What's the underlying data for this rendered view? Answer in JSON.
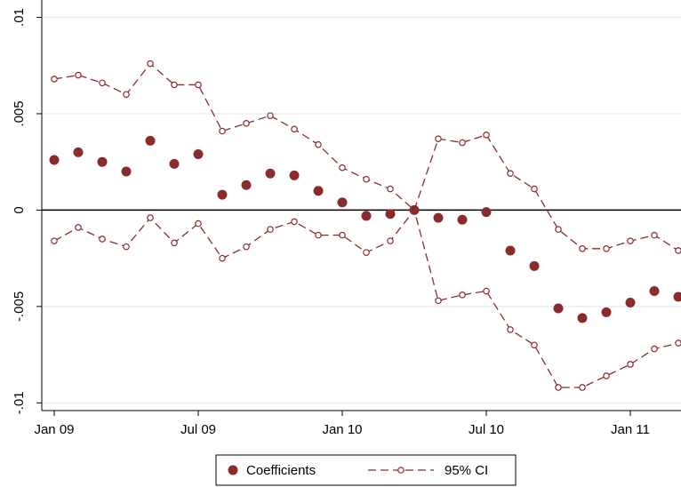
{
  "chart_data": {
    "type": "coefplot",
    "categories": [
      "Jan 09",
      null,
      null,
      null,
      null,
      null,
      "Jul 09",
      null,
      null,
      null,
      null,
      null,
      "Jan 10",
      null,
      null,
      null,
      null,
      null,
      "Jul 10",
      null,
      null,
      null,
      null,
      null,
      "Jan 11",
      null,
      null
    ],
    "series": [
      {
        "name": "Coefficients",
        "color": "#8b2b2b",
        "values": [
          0.0026,
          0.003,
          0.0025,
          0.002,
          0.0036,
          0.0024,
          0.0029,
          0.0008,
          0.0013,
          0.0019,
          0.0018,
          0.001,
          0.0004,
          -0.0003,
          -0.0002,
          0,
          -0.0004,
          -0.0005,
          -0.0001,
          -0.0021,
          -0.0029,
          -0.0051,
          -0.0056,
          -0.0053,
          -0.0048,
          -0.0042,
          -0.0045
        ]
      },
      {
        "name": "95% CI",
        "color": "#8b2b2b",
        "upper": [
          0.0068,
          0.007,
          0.0066,
          0.006,
          0.0076,
          0.0065,
          0.0065,
          0.0041,
          0.0045,
          0.0049,
          0.0042,
          0.0034,
          0.0022,
          0.0016,
          0.0011,
          0,
          0.0037,
          0.0035,
          0.0039,
          0.0019,
          0.0011,
          -0.001,
          -0.002,
          -0.002,
          -0.0016,
          -0.0013,
          -0.0021
        ],
        "lower": [
          -0.0016,
          -0.0009,
          -0.0015,
          -0.0019,
          -0.0004,
          -0.0017,
          -0.0007,
          -0.0025,
          -0.0019,
          -0.001,
          -0.0006,
          -0.0013,
          -0.0013,
          -0.0022,
          -0.0016,
          0,
          -0.0047,
          -0.0044,
          -0.0042,
          -0.0062,
          -0.007,
          -0.0092,
          -0.0092,
          -0.0086,
          -0.008,
          -0.0072,
          -0.0069
        ]
      }
    ],
    "ylim": [
      -0.0104,
      0.0109
    ],
    "yticks": [
      {
        "value": -0.01,
        "label": "-.01"
      },
      {
        "value": -0.005,
        "label": "-.005"
      },
      0,
      {
        "value": 0.005,
        "label": ".005"
      },
      {
        "value": 0.01,
        "label": ".01"
      }
    ],
    "grid": true,
    "zero_line": true,
    "legend": "bottom"
  }
}
